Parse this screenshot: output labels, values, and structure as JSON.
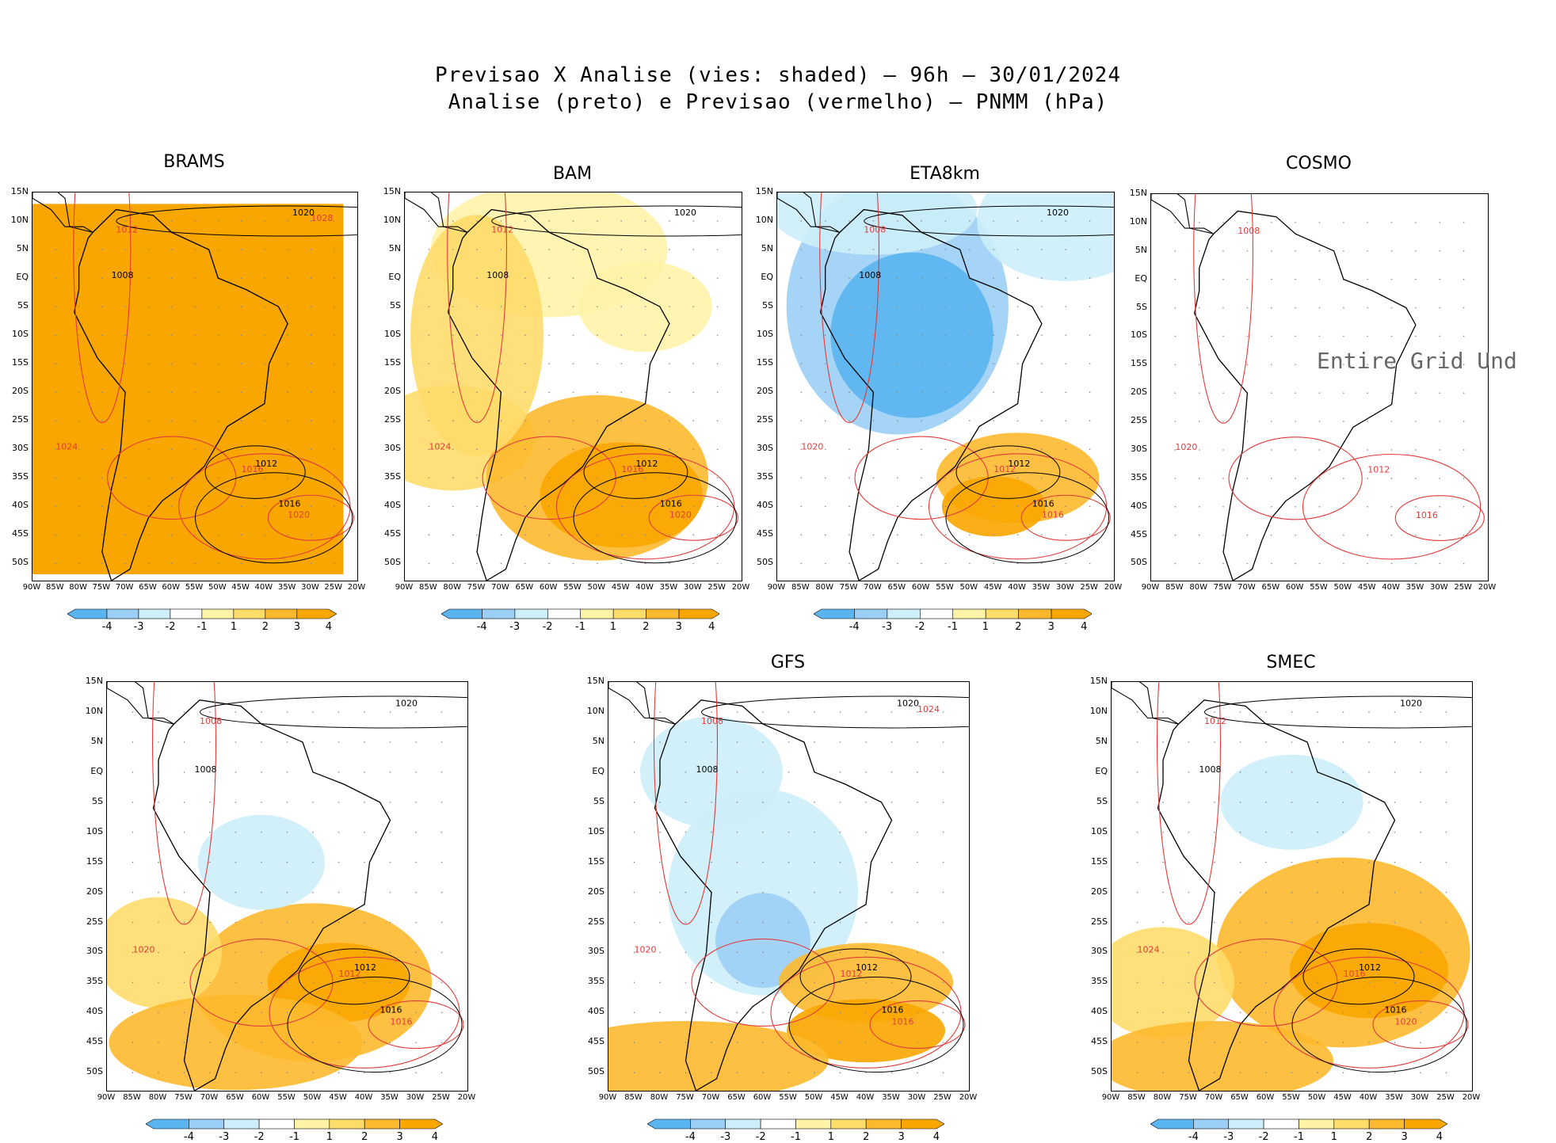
{
  "header": {
    "line1": "Previsao X Analise (vies: shaded) — 96h — 30/01/2024",
    "line2": "Analise (preto) e Previsao (vermelho) — PNMM (hPa)"
  },
  "axes": {
    "lat_labels": [
      "15N",
      "10N",
      "5N",
      "EQ",
      "5S",
      "10S",
      "15S",
      "20S",
      "25S",
      "30S",
      "35S",
      "40S",
      "45S",
      "50S"
    ],
    "lon_labels": [
      "90W",
      "85W",
      "80W",
      "75W",
      "70W",
      "65W",
      "60W",
      "55W",
      "50W",
      "45W",
      "40W",
      "35W",
      "30W",
      "25W",
      "20W"
    ],
    "lat_range": [
      15,
      -53
    ],
    "lon_range": [
      -90,
      -20
    ]
  },
  "colorbar": {
    "labels": [
      "-4",
      "-3",
      "-2",
      "-1",
      "1",
      "2",
      "3",
      "4"
    ],
    "colors": [
      "#5ab4f0",
      "#9ccff5",
      "#cdeefa",
      "#ffffff",
      "#fff3a8",
      "#fedc6a",
      "#fdb92e",
      "#f9a600"
    ]
  },
  "no_data_message": "Entire Grid Und",
  "panels": [
    {
      "name": "BRAMS",
      "title": "BRAMS",
      "mode": "full_orange",
      "contours_red": [
        "1012",
        "1016",
        "1020",
        "1024",
        "1028"
      ],
      "contours_black": [
        "1008",
        "1012",
        "1016",
        "1020"
      ]
    },
    {
      "name": "BAM",
      "title": "BAM",
      "mode": "warm",
      "contours_red": [
        "1012",
        "1016",
        "1020",
        "1024"
      ],
      "contours_black": [
        "1008",
        "1012",
        "1016",
        "1020"
      ]
    },
    {
      "name": "ETA8km",
      "title": "ETA8km",
      "mode": "cool",
      "contours_red": [
        "1008",
        "1012",
        "1016",
        "1020"
      ],
      "contours_black": [
        "1008",
        "1012",
        "1016",
        "1020"
      ]
    },
    {
      "name": "COSMO",
      "title": "COSMO",
      "mode": "none",
      "contours_red": [
        "1008",
        "1012",
        "1016",
        "1020"
      ],
      "contours_black": []
    },
    {
      "name": "noname",
      "title": "",
      "mode": "mixed",
      "contours_red": [
        "1008",
        "1012",
        "1016",
        "1020"
      ],
      "contours_black": [
        "1008",
        "1012",
        "1016",
        "1020"
      ]
    },
    {
      "name": "GFS",
      "title": "GFS",
      "mode": "mixed2",
      "contours_red": [
        "1008",
        "1012",
        "1016",
        "1020",
        "1024"
      ],
      "contours_black": [
        "1008",
        "1012",
        "1016",
        "1020"
      ]
    },
    {
      "name": "SMEC",
      "title": "SMEC",
      "mode": "mixed3",
      "contours_red": [
        "1012",
        "1016",
        "1020",
        "1024"
      ],
      "contours_black": [
        "1008",
        "1012",
        "1016",
        "1020"
      ]
    }
  ]
}
